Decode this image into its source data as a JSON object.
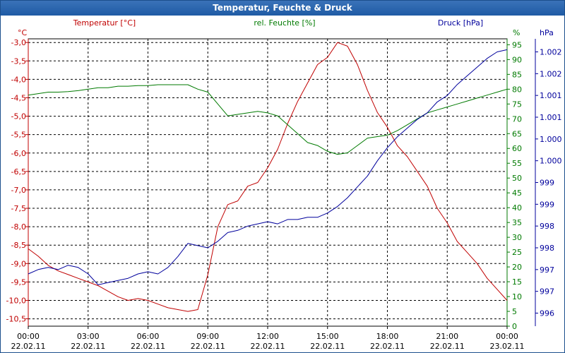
{
  "window": {
    "title": "Temperatur, Feuchte & Druck"
  },
  "colors": {
    "temperature": "#c00000",
    "humidity": "#007a00",
    "pressure": "#00009c",
    "grid": "#000000",
    "text": "#000000",
    "title_bar": "#1f5ba5"
  },
  "chart_data": {
    "type": "line",
    "grid": true,
    "x_tick_labels": [
      {
        "time": "00:00",
        "date": "22.02.11"
      },
      {
        "time": "03:00",
        "date": "22.02.11"
      },
      {
        "time": "06:00",
        "date": "22.02.11"
      },
      {
        "time": "09:00",
        "date": "22.02.11"
      },
      {
        "time": "12:00",
        "date": "22.02.11"
      },
      {
        "time": "15:00",
        "date": "22.02.11"
      },
      {
        "time": "18:00",
        "date": "22.02.11"
      },
      {
        "time": "21:00",
        "date": "22.02.11"
      },
      {
        "time": "00:00",
        "date": "23.02.11"
      }
    ],
    "xlim": [
      0,
      24
    ],
    "axes": {
      "temperature": {
        "title": "Temperatur [°C]",
        "unit": "°C",
        "ylim": [
          -10.7,
          -2.9
        ],
        "ticks": [
          "-3,0",
          "-3,5",
          "-4,0",
          "-4,5",
          "-5,0",
          "-5,5",
          "-6,0",
          "-6,5",
          "-7,0",
          "-7,5",
          "-8,0",
          "-8,5",
          "-9,0",
          "-9,5",
          "-10,0",
          "-10,5"
        ],
        "tick_values": [
          -3.0,
          -3.5,
          -4.0,
          -4.5,
          -5.0,
          -5.5,
          -6.0,
          -6.5,
          -7.0,
          -7.5,
          -8.0,
          -8.5,
          -9.0,
          -9.5,
          -10.0,
          -10.5
        ]
      },
      "humidity": {
        "title": "rel. Feuchte [%]",
        "unit": "%",
        "ylim": [
          0,
          97
        ],
        "ticks": [
          "95",
          "90",
          "85",
          "80",
          "75",
          "70",
          "65",
          "60",
          "55",
          "50",
          "45",
          "40",
          "35",
          "30",
          "25",
          "20",
          "15",
          "10",
          "5",
          "0"
        ],
        "tick_values": [
          95,
          90,
          85,
          80,
          75,
          70,
          65,
          60,
          55,
          50,
          45,
          40,
          35,
          30,
          25,
          20,
          15,
          10,
          5,
          0
        ]
      },
      "pressure": {
        "title": "Druck [hPa]",
        "unit": "hPa",
        "ylim": [
          995.7,
          1002.3
        ],
        "ticks": [
          "1.002",
          "1.002",
          "1.001",
          "1.001",
          "1.000",
          "1.000",
          "999",
          "999",
          "998",
          "998",
          "997",
          "997",
          "996"
        ],
        "tick_values": [
          1002,
          1001.5,
          1001,
          1000.5,
          1000,
          999.5,
          999,
          998.5,
          998,
          997.5,
          997,
          996.5,
          996
        ]
      }
    },
    "series": [
      {
        "name": "Temperatur [°C]",
        "axis": "temperature",
        "x": [
          0,
          0.5,
          1,
          1.5,
          2,
          2.5,
          3,
          3.5,
          4,
          4.5,
          5,
          5.5,
          6,
          6.5,
          7,
          7.5,
          8,
          8.5,
          9,
          9.5,
          10,
          10.5,
          11,
          11.5,
          12,
          12.5,
          13,
          13.5,
          14,
          14.5,
          15,
          15.5,
          16,
          16.5,
          17,
          17.5,
          18,
          18.5,
          19,
          19.5,
          20,
          20.5,
          21,
          21.5,
          22,
          22.5,
          23,
          23.5,
          24
        ],
        "values": [
          -8.6,
          -8.8,
          -9.05,
          -9.2,
          -9.3,
          -9.4,
          -9.5,
          -9.6,
          -9.75,
          -9.9,
          -10.0,
          -9.95,
          -10.0,
          -10.1,
          -10.2,
          -10.25,
          -10.3,
          -10.25,
          -9.3,
          -8.0,
          -7.4,
          -7.3,
          -6.9,
          -6.8,
          -6.4,
          -5.9,
          -5.2,
          -4.6,
          -4.1,
          -3.6,
          -3.4,
          -3.0,
          -3.1,
          -3.6,
          -4.3,
          -4.9,
          -5.3,
          -5.8,
          -6.1,
          -6.5,
          -6.9,
          -7.5,
          -7.9,
          -8.4,
          -8.7,
          -9.0,
          -9.4,
          -9.7,
          -10.0
        ]
      },
      {
        "name": "rel. Feuchte [%]",
        "axis": "humidity",
        "x": [
          0,
          0.5,
          1,
          1.5,
          2,
          2.5,
          3,
          3.5,
          4,
          4.5,
          5,
          5.5,
          6,
          6.5,
          7,
          7.5,
          8,
          8.5,
          9,
          9.5,
          10,
          10.5,
          11,
          11.5,
          12,
          12.5,
          13,
          13.5,
          14,
          14.5,
          15,
          15.5,
          16,
          16.5,
          17,
          17.5,
          18,
          18.5,
          19,
          19.5,
          20,
          20.5,
          21,
          21.5,
          22,
          22.5,
          23,
          23.5,
          24
        ],
        "values": [
          78,
          78.5,
          79,
          79,
          79.2,
          79.5,
          80,
          80.5,
          80.5,
          81,
          81,
          81.2,
          81.2,
          81.5,
          81.5,
          81.5,
          81.5,
          80,
          79,
          75,
          71,
          71.5,
          72,
          72.5,
          72,
          71,
          68,
          65,
          62,
          61,
          59,
          58,
          58.5,
          61,
          63.5,
          64,
          64.5,
          66,
          68,
          70,
          72,
          73,
          74,
          75,
          76,
          77,
          78,
          79,
          80
        ]
      },
      {
        "name": "Druck [hPa]",
        "axis": "pressure",
        "x": [
          0,
          0.5,
          1,
          1.5,
          2,
          2.5,
          3,
          3.5,
          4,
          4.5,
          5,
          5.5,
          6,
          6.5,
          7,
          7.5,
          8,
          8.5,
          9,
          9.5,
          10,
          10.5,
          11,
          11.5,
          12,
          12.5,
          13,
          13.5,
          14,
          14.5,
          15,
          15.5,
          16,
          16.5,
          17,
          17.5,
          18,
          18.5,
          19,
          19.5,
          20,
          20.5,
          21,
          21.5,
          22,
          22.5,
          23,
          23.5,
          24
        ],
        "values": [
          996.9,
          997.0,
          997.05,
          997.0,
          997.1,
          997.05,
          996.9,
          996.65,
          996.7,
          996.75,
          996.8,
          996.9,
          996.95,
          996.9,
          997.05,
          997.3,
          997.6,
          997.55,
          997.5,
          997.65,
          997.85,
          997.9,
          998.0,
          998.05,
          998.1,
          998.05,
          998.15,
          998.15,
          998.2,
          998.2,
          998.3,
          998.45,
          998.65,
          998.9,
          999.15,
          999.5,
          999.8,
          1000.05,
          1000.25,
          1000.45,
          1000.6,
          1000.85,
          1001.0,
          1001.25,
          1001.45,
          1001.65,
          1001.85,
          1002.0,
          1002.05
        ]
      }
    ]
  }
}
